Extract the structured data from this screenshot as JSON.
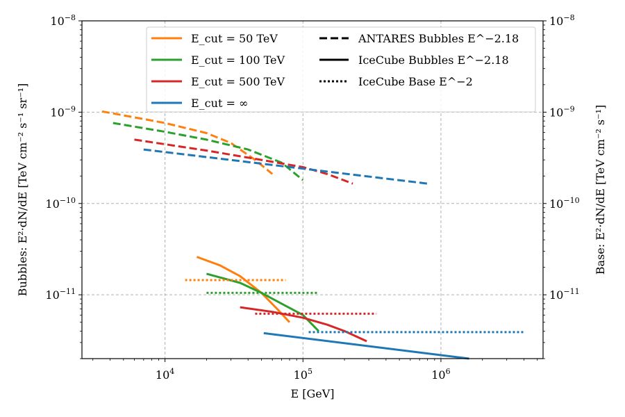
{
  "chart_data": {
    "type": "line",
    "xlabel": "E [GeV]",
    "ylabel_left": "Bubbles: E²·dN/dE [TeV cm⁻² s⁻¹ sr⁻¹]",
    "ylabel_right": "Base: E²·dN/dE [TeV cm⁻² s⁻¹]",
    "xscale": "log",
    "yscale": "log",
    "xlim": [
      2500,
      5500000
    ],
    "ylim": [
      2e-12,
      1e-08
    ],
    "grid": true,
    "legend_position": "top-right",
    "x_ticks": [
      {
        "value": 10000,
        "base": "10",
        "exp": "4"
      },
      {
        "value": 100000,
        "base": "10",
        "exp": "5"
      },
      {
        "value": 1000000,
        "base": "10",
        "exp": "6"
      }
    ],
    "y_ticks": [
      {
        "value": 1e-11,
        "base": "10",
        "exp": "−11"
      },
      {
        "value": 1e-10,
        "base": "10",
        "exp": "−10"
      },
      {
        "value": 1e-09,
        "base": "10",
        "exp": "−9"
      },
      {
        "value": 1e-08,
        "base": "10",
        "exp": "−8"
      }
    ],
    "legend_colors": [
      {
        "label": "E_cut = 50 TeV",
        "color": "#ff7f0e"
      },
      {
        "label": "E_cut = 100 TeV",
        "color": "#2ca02c"
      },
      {
        "label": "E_cut = 500 TeV",
        "color": "#d62728"
      },
      {
        "label": "E_cut = ∞",
        "color": "#1f77b4"
      }
    ],
    "legend_styles": [
      {
        "label": "ANTARES Bubbles E^−2.18",
        "style": "dashed"
      },
      {
        "label": "IceCube Bubbles E^−2.18",
        "style": "solid"
      },
      {
        "label": "IceCube Base E^−2",
        "style": "dotted"
      }
    ],
    "series": [
      {
        "color": "#ff7f0e",
        "style": "dashed",
        "x": [
          3500,
          10000,
          20000,
          30000,
          45000,
          60000
        ],
        "y": [
          1.02e-09,
          7.6e-10,
          5.9e-10,
          4.6e-10,
          3e-10,
          2.1e-10
        ]
      },
      {
        "color": "#2ca02c",
        "style": "dashed",
        "x": [
          4200,
          10000,
          20000,
          40000,
          70000,
          100000
        ],
        "y": [
          7.6e-10,
          6.1e-10,
          5e-10,
          3.9e-10,
          2.8e-10,
          1.8e-10
        ]
      },
      {
        "color": "#d62728",
        "style": "dashed",
        "x": [
          6000,
          20000,
          50000,
          100000,
          150000,
          230000
        ],
        "y": [
          5e-10,
          3.8e-10,
          3e-10,
          2.5e-10,
          2.1e-10,
          1.65e-10
        ]
      },
      {
        "color": "#1f77b4",
        "style": "dashed",
        "x": [
          7000,
          800000
        ],
        "y": [
          3.9e-10,
          1.65e-10
        ]
      },
      {
        "color": "#ff7f0e",
        "style": "solid",
        "x": [
          17000,
          25000,
          35000,
          50000,
          65000,
          80000
        ],
        "y": [
          2.6e-11,
          2.1e-11,
          1.6e-11,
          1.05e-11,
          7e-12,
          5e-12
        ]
      },
      {
        "color": "#2ca02c",
        "style": "solid",
        "x": [
          20000,
          35000,
          50000,
          70000,
          100000,
          130000
        ],
        "y": [
          1.7e-11,
          1.35e-11,
          1.05e-11,
          8e-12,
          6e-12,
          4e-12
        ]
      },
      {
        "color": "#d62728",
        "style": "solid",
        "x": [
          35000,
          60000,
          100000,
          150000,
          200000,
          290000
        ],
        "y": [
          7.3e-12,
          6.5e-12,
          5.6e-12,
          4.7e-12,
          4e-12,
          3.1e-12
        ]
      },
      {
        "color": "#1f77b4",
        "style": "solid",
        "x": [
          52000,
          1600000
        ],
        "y": [
          3.8e-12,
          2e-12
        ]
      },
      {
        "color": "#ff7f0e",
        "style": "dotted",
        "x": [
          14000,
          75000
        ],
        "y": [
          1.45e-11,
          1.45e-11
        ]
      },
      {
        "color": "#2ca02c",
        "style": "dotted",
        "x": [
          20000,
          130000
        ],
        "y": [
          1.05e-11,
          1.05e-11
        ]
      },
      {
        "color": "#d62728",
        "style": "dotted",
        "x": [
          45000,
          340000
        ],
        "y": [
          6.2e-12,
          6.2e-12
        ]
      },
      {
        "color": "#1f77b4",
        "style": "dotted",
        "x": [
          110000,
          4000000
        ],
        "y": [
          3.9e-12,
          3.9e-12
        ]
      }
    ]
  }
}
